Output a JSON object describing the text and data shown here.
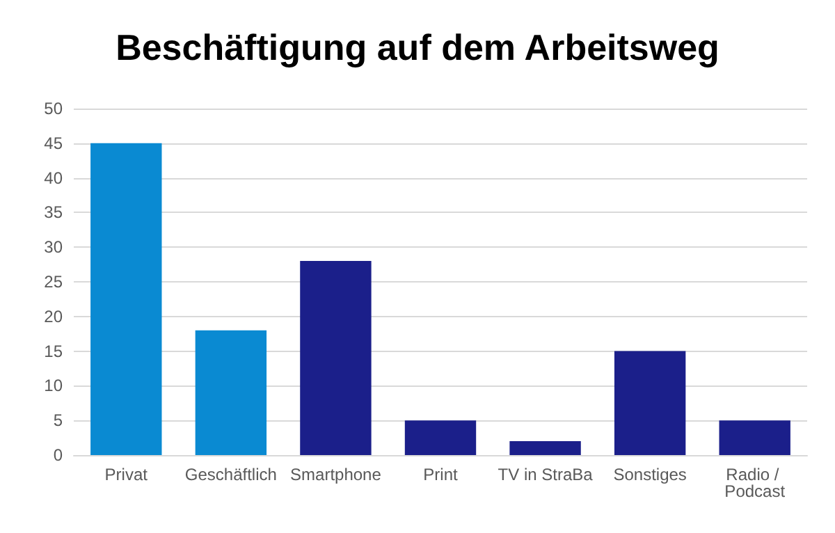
{
  "chart_data": {
    "type": "bar",
    "title": "Beschäftigung auf dem Arbeitsweg",
    "categories": [
      "Privat",
      "Geschäftlich",
      "Smartphone",
      "Print",
      "TV in StraBa",
      "Sonstiges",
      "Radio / Podcast"
    ],
    "values": [
      45,
      18,
      28,
      5,
      2,
      15,
      5
    ],
    "colors": [
      "#0a8ad2",
      "#0a8ad2",
      "#1b1f8a",
      "#1b1f8a",
      "#1b1f8a",
      "#1b1f8a",
      "#1b1f8a"
    ],
    "ylim": [
      0,
      50
    ],
    "yticks": [
      0,
      5,
      10,
      15,
      20,
      25,
      30,
      35,
      40,
      45,
      50
    ],
    "grid": "y"
  }
}
